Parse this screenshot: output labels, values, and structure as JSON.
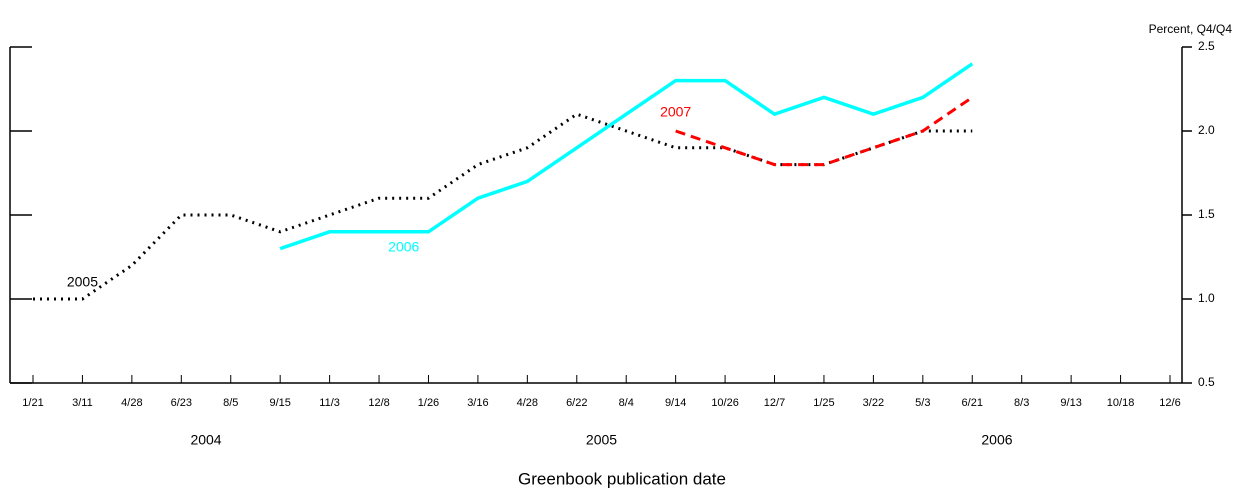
{
  "chart_data": {
    "type": "line",
    "y_axis_label": "Percent, Q4/Q4",
    "x_axis_label": "Greenbook publication date",
    "categories": [
      "1/21",
      "3/11",
      "4/28",
      "6/23",
      "8/5",
      "9/15",
      "11/3",
      "12/8",
      "1/26",
      "3/16",
      "4/28",
      "6/22",
      "8/4",
      "9/14",
      "10/26",
      "12/7",
      "1/25",
      "3/22",
      "5/3",
      "6/21",
      "8/3",
      "9/13",
      "10/18",
      "12/6"
    ],
    "years": [
      "2004",
      "2005",
      "2006"
    ],
    "ylim": [
      0.5,
      2.5
    ],
    "yticks": [
      0.5,
      {
        "value": 1,
        "label": "1.0"
      },
      1.5,
      {
        "value": 2,
        "label": "2.0"
      },
      2.5
    ],
    "series": [
      {
        "name": "2005",
        "color": "#000000",
        "dash": "dotted",
        "values": [
          1.0,
          1.0,
          1.2,
          1.5,
          1.5,
          1.4,
          1.5,
          1.6,
          1.6,
          1.8,
          1.9,
          2.1,
          2.0,
          1.9,
          1.9,
          1.8,
          1.8,
          1.9,
          2.0,
          2.0,
          null,
          null,
          null,
          null
        ]
      },
      {
        "name": "2006",
        "color": "#00ffff",
        "dash": "solid",
        "values": [
          null,
          null,
          null,
          null,
          null,
          1.3,
          1.4,
          1.4,
          1.4,
          1.6,
          1.7,
          1.9,
          2.1,
          2.3,
          2.3,
          2.1,
          2.2,
          2.1,
          2.2,
          2.4,
          null,
          null,
          null,
          null
        ]
      },
      {
        "name": "2007",
        "color": "#ff0000",
        "dash": "dashed",
        "values": [
          null,
          null,
          null,
          null,
          null,
          null,
          null,
          null,
          null,
          null,
          null,
          null,
          null,
          2.0,
          1.9,
          1.8,
          1.8,
          1.9,
          2.0,
          2.2,
          null,
          null,
          null,
          null
        ]
      }
    ]
  }
}
